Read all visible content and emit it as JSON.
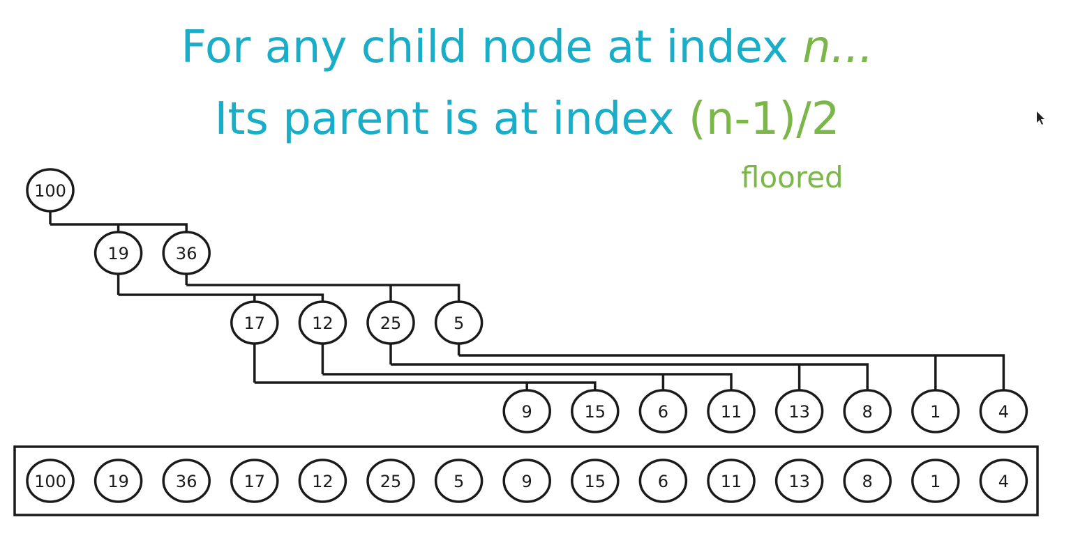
{
  "title": {
    "line1_text": "For any child node at index ",
    "line1_var": "n...",
    "line2_text": "Its parent is at index ",
    "line2_formula": "(n-1)/2",
    "note": "floored"
  },
  "colors": {
    "title": "#1aadc7",
    "accent": "#7ab648",
    "stroke": "#1a1a1a"
  },
  "heap": {
    "values": [
      "100",
      "19",
      "36",
      "17",
      "12",
      "25",
      "5",
      "9",
      "15",
      "6",
      "11",
      "13",
      "8",
      "1",
      "4"
    ]
  },
  "icons": [
    "mouse-cursor-icon"
  ]
}
